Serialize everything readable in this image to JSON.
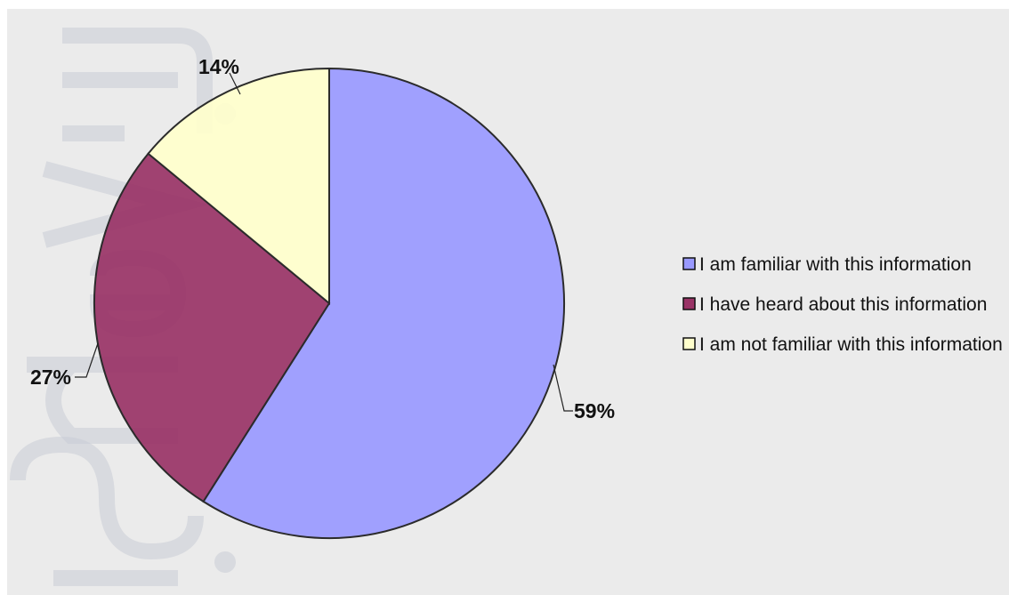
{
  "chart_data": {
    "type": "pie",
    "categories": [
      "I am familiar with this information",
      "I have heard about this information",
      "I am not familiar with this information"
    ],
    "values": [
      59,
      27,
      14
    ],
    "data_labels": [
      "59%",
      "27%",
      "14%"
    ],
    "colors": [
      "#9999ff",
      "#993366",
      "#ffffcc"
    ],
    "start_angle_deg": 0,
    "direction": "clockwise",
    "legend_position": "right",
    "title": ""
  },
  "background_color": "#ebebeb",
  "slice_outline_color": "#2b2b2b"
}
